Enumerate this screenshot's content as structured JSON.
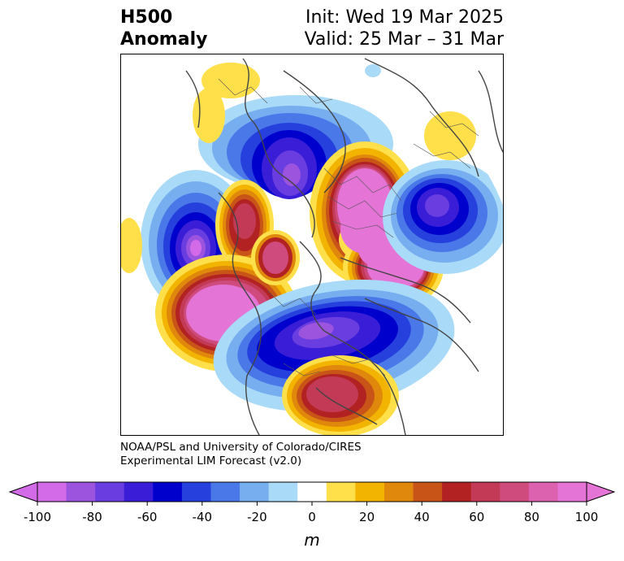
{
  "title": {
    "left_line1": "H500",
    "left_line2": "Anomaly",
    "right_line1": "Init: Wed 19 Mar 2025",
    "right_line2": "Valid: 25 Mar – 31 Mar"
  },
  "credit": {
    "line1": "NOAA/PSL and University of Colorado/CIRES",
    "line2": "Experimental LIM Forecast (v2.0)"
  },
  "colorbar": {
    "unit": "m",
    "ticks": [
      "-100",
      "-80",
      "-60",
      "-40",
      "-20",
      "0",
      "20",
      "40",
      "60",
      "80",
      "100"
    ],
    "colors": [
      "#d36be8",
      "#9c54df",
      "#6a3de0",
      "#3a1dd6",
      "#0000cc",
      "#2540dc",
      "#4a78e8",
      "#76aef0",
      "#a9daf8",
      "#ffffff",
      "#ffe04a",
      "#f2b400",
      "#e0880c",
      "#c85418",
      "#b22222",
      "#c23a56",
      "#cf4b7d",
      "#dc62b0",
      "#e474d6"
    ],
    "extend_low_color": "#d36be8",
    "extend_high_color": "#e474d6"
  }
}
